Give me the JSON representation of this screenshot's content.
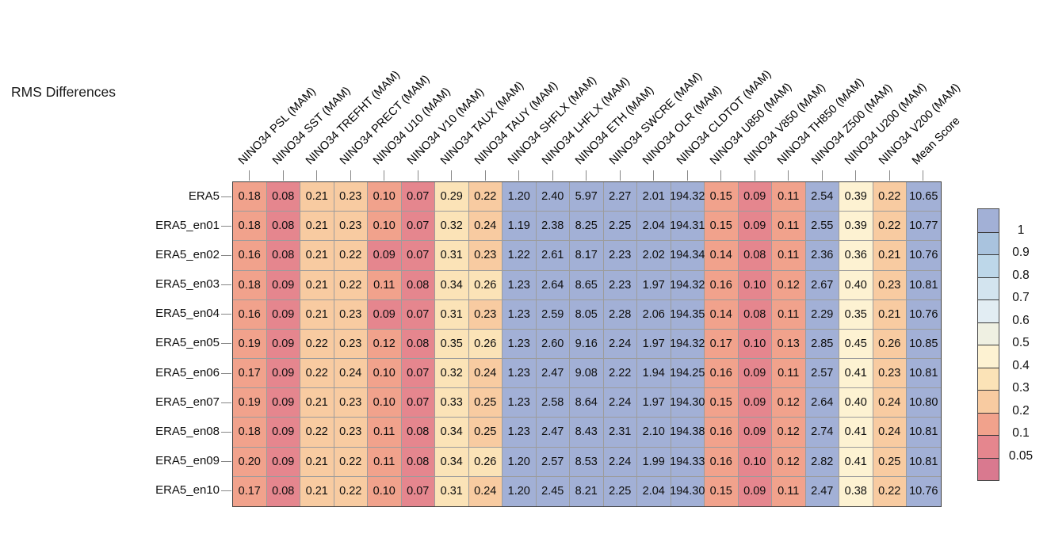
{
  "chart_data": {
    "type": "heatmap",
    "title": "RMS Differences",
    "columns": [
      "NINO34 PSL (MAM)",
      "NINO34 SST (MAM)",
      "NINO34 TREFHT (MAM)",
      "NINO34 PRECT (MAM)",
      "NINO34 U10 (MAM)",
      "NINO34 V10 (MAM)",
      "NINO34 TAUX (MAM)",
      "NINO34 TAUY (MAM)",
      "NINO34 SHFLX (MAM)",
      "NINO34 LHFLX (MAM)",
      "NINO34 ETH (MAM)",
      "NINO34 SWCRE (MAM)",
      "NINO34 OLR (MAM)",
      "NINO34 CLDTOT (MAM)",
      "NINO34 U850 (MAM)",
      "NINO34 V850 (MAM)",
      "NINO34 TH850 (MAM)",
      "NINO34 Z500 (MAM)",
      "NINO34 U200 (MAM)",
      "NINO34 V200 (MAM)",
      "Mean Score"
    ],
    "rows": [
      "ERA5",
      "ERA5_en01",
      "ERA5_en02",
      "ERA5_en03",
      "ERA5_en04",
      "ERA5_en05",
      "ERA5_en06",
      "ERA5_en07",
      "ERA5_en08",
      "ERA5_en09",
      "ERA5_en10"
    ],
    "values": [
      [
        "0.18",
        "0.08",
        "0.21",
        "0.23",
        "0.10",
        "0.07",
        "0.29",
        "0.22",
        "1.20",
        "2.40",
        "5.97",
        "2.27",
        "2.01",
        "194.32",
        "0.15",
        "0.09",
        "0.11",
        "2.54",
        "0.39",
        "0.22",
        "10.65"
      ],
      [
        "0.18",
        "0.08",
        "0.21",
        "0.23",
        "0.10",
        "0.07",
        "0.32",
        "0.24",
        "1.19",
        "2.38",
        "8.25",
        "2.25",
        "2.04",
        "194.31",
        "0.15",
        "0.09",
        "0.11",
        "2.55",
        "0.39",
        "0.22",
        "10.77"
      ],
      [
        "0.16",
        "0.08",
        "0.21",
        "0.22",
        "0.09",
        "0.07",
        "0.31",
        "0.23",
        "1.22",
        "2.61",
        "8.17",
        "2.23",
        "2.02",
        "194.34",
        "0.14",
        "0.08",
        "0.11",
        "2.36",
        "0.36",
        "0.21",
        "10.76"
      ],
      [
        "0.18",
        "0.09",
        "0.21",
        "0.22",
        "0.11",
        "0.08",
        "0.34",
        "0.26",
        "1.23",
        "2.64",
        "8.65",
        "2.23",
        "1.97",
        "194.32",
        "0.16",
        "0.10",
        "0.12",
        "2.67",
        "0.40",
        "0.23",
        "10.81"
      ],
      [
        "0.16",
        "0.09",
        "0.21",
        "0.23",
        "0.09",
        "0.07",
        "0.31",
        "0.23",
        "1.23",
        "2.59",
        "8.05",
        "2.28",
        "2.06",
        "194.35",
        "0.14",
        "0.08",
        "0.11",
        "2.29",
        "0.35",
        "0.21",
        "10.76"
      ],
      [
        "0.19",
        "0.09",
        "0.22",
        "0.23",
        "0.12",
        "0.08",
        "0.35",
        "0.26",
        "1.23",
        "2.60",
        "9.16",
        "2.24",
        "1.97",
        "194.32",
        "0.17",
        "0.10",
        "0.13",
        "2.85",
        "0.45",
        "0.26",
        "10.85"
      ],
      [
        "0.17",
        "0.09",
        "0.22",
        "0.24",
        "0.10",
        "0.07",
        "0.32",
        "0.24",
        "1.23",
        "2.47",
        "9.08",
        "2.22",
        "1.94",
        "194.25",
        "0.16",
        "0.09",
        "0.11",
        "2.57",
        "0.41",
        "0.23",
        "10.81"
      ],
      [
        "0.19",
        "0.09",
        "0.21",
        "0.23",
        "0.10",
        "0.07",
        "0.33",
        "0.25",
        "1.23",
        "2.58",
        "8.64",
        "2.24",
        "1.97",
        "194.30",
        "0.15",
        "0.09",
        "0.12",
        "2.64",
        "0.40",
        "0.24",
        "10.80"
      ],
      [
        "0.18",
        "0.09",
        "0.22",
        "0.23",
        "0.11",
        "0.08",
        "0.34",
        "0.25",
        "1.23",
        "2.47",
        "8.43",
        "2.31",
        "2.10",
        "194.38",
        "0.16",
        "0.09",
        "0.12",
        "2.74",
        "0.41",
        "0.24",
        "10.81"
      ],
      [
        "0.20",
        "0.09",
        "0.21",
        "0.22",
        "0.11",
        "0.08",
        "0.34",
        "0.26",
        "1.20",
        "2.57",
        "8.53",
        "2.24",
        "1.99",
        "194.33",
        "0.16",
        "0.10",
        "0.12",
        "2.82",
        "0.41",
        "0.25",
        "10.81"
      ],
      [
        "0.17",
        "0.08",
        "0.21",
        "0.22",
        "0.10",
        "0.07",
        "0.31",
        "0.24",
        "1.20",
        "2.45",
        "8.21",
        "2.25",
        "2.04",
        "194.30",
        "0.15",
        "0.09",
        "0.11",
        "2.47",
        "0.38",
        "0.22",
        "10.76"
      ]
    ],
    "cell_color_band": [
      [
        9,
        10,
        8,
        8,
        9,
        10,
        7,
        8,
        0,
        0,
        0,
        0,
        0,
        0,
        9,
        10,
        9,
        0,
        6,
        8,
        0
      ],
      [
        9,
        10,
        8,
        8,
        9,
        10,
        7,
        8,
        0,
        0,
        0,
        0,
        0,
        0,
        9,
        10,
        9,
        0,
        6,
        8,
        0
      ],
      [
        9,
        10,
        8,
        8,
        10,
        10,
        7,
        8,
        0,
        0,
        0,
        0,
        0,
        0,
        9,
        10,
        9,
        0,
        6,
        8,
        0
      ],
      [
        9,
        10,
        8,
        8,
        9,
        10,
        7,
        7,
        0,
        0,
        0,
        0,
        0,
        0,
        9,
        10,
        9,
        0,
        6,
        8,
        0
      ],
      [
        9,
        10,
        8,
        8,
        10,
        10,
        7,
        8,
        0,
        0,
        0,
        0,
        0,
        0,
        9,
        10,
        9,
        0,
        6,
        8,
        0
      ],
      [
        9,
        10,
        8,
        8,
        9,
        10,
        7,
        7,
        0,
        0,
        0,
        0,
        0,
        0,
        9,
        10,
        9,
        0,
        6,
        8,
        0
      ],
      [
        9,
        10,
        8,
        8,
        9,
        10,
        7,
        8,
        0,
        0,
        0,
        0,
        0,
        0,
        9,
        10,
        9,
        0,
        6,
        8,
        0
      ],
      [
        9,
        10,
        8,
        8,
        9,
        10,
        7,
        8,
        0,
        0,
        0,
        0,
        0,
        0,
        9,
        10,
        9,
        0,
        6,
        8,
        0
      ],
      [
        9,
        10,
        8,
        8,
        9,
        10,
        7,
        8,
        0,
        0,
        0,
        0,
        0,
        0,
        9,
        10,
        9,
        0,
        6,
        8,
        0
      ],
      [
        9,
        10,
        8,
        8,
        9,
        10,
        7,
        7,
        0,
        0,
        0,
        0,
        0,
        0,
        9,
        10,
        9,
        0,
        6,
        8,
        0
      ],
      [
        9,
        10,
        8,
        8,
        9,
        10,
        7,
        8,
        0,
        0,
        0,
        0,
        0,
        0,
        9,
        10,
        9,
        0,
        6,
        8,
        0
      ]
    ],
    "band_colors": [
      "#a2b0d6",
      "#a9c3de",
      "#bdd7e9",
      "#d3e4ef",
      "#e2edf3",
      "#eff0e2",
      "#fdf2d2",
      "#fbe3b7",
      "#f8cba1",
      "#f1a28c",
      "#e5868e",
      "#d9798f"
    ],
    "legend_labels": [
      "1",
      "0.9",
      "0.8",
      "0.7",
      "0.6",
      "0.5",
      "0.4",
      "0.3",
      "0.2",
      "0.1",
      "0.05"
    ],
    "legend_levels": [
      1,
      0.9,
      0.8,
      0.7,
      0.6,
      0.5,
      0.4,
      0.3,
      0.2,
      0.1,
      0.05
    ],
    "legend_position": "right",
    "grid": "on"
  }
}
